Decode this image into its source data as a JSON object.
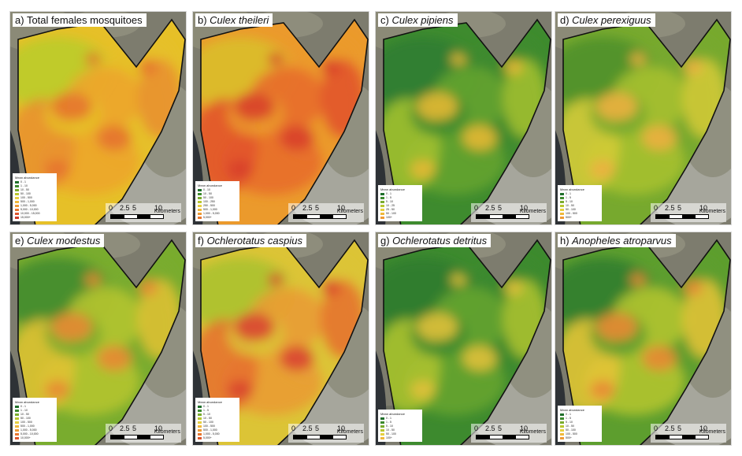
{
  "figure": {
    "panels": [
      {
        "letter": "a)",
        "title_plain": "Total females mosquitoes",
        "title_italic": "",
        "palette": [
          "#b9cc2a",
          "#e6c028",
          "#eda42a",
          "#e98f30"
        ],
        "hot": "#e5732e",
        "legend": {
          "title": "Mean abundance",
          "items": [
            "0 - 1",
            "1 - 10",
            "10 - 50",
            "50 - 100",
            "100 - 500",
            "500 - 1,000",
            "1,000 - 5,000",
            "5,000 - 10,000",
            "10,000 - 15,000",
            "15,000+"
          ]
        }
      },
      {
        "letter": "b)",
        "title_plain": "",
        "title_italic": "Culex theileri",
        "palette": [
          "#d9c02a",
          "#eb9a2c",
          "#e86b2a",
          "#e2522a"
        ],
        "hot": "#d8402a",
        "legend": {
          "title": "Mean abundance",
          "items": [
            "0 - 10",
            "10 - 50",
            "50 - 100",
            "100 - 250",
            "250 - 500",
            "500 - 1,000",
            "1,000 - 5,000",
            "5,000+"
          ]
        }
      },
      {
        "letter": "c)",
        "title_plain": "",
        "title_italic": "Culex pipiens",
        "palette": [
          "#2f7d32",
          "#3e8b2e",
          "#66a42e",
          "#a6c230"
        ],
        "hot": "#e4b834",
        "legend": {
          "title": "Mean abundance",
          "items": [
            "0 - 1",
            "1 - 5",
            "5 - 10",
            "10 - 25",
            "25 - 50",
            "50 - 100",
            "100+"
          ]
        }
      },
      {
        "letter": "d)",
        "title_plain": "",
        "title_italic": "Culex perexiguus",
        "palette": [
          "#4c8f2c",
          "#77a92e",
          "#a9c22e",
          "#d6cb38"
        ],
        "hot": "#ecb040",
        "legend": {
          "title": "Mean abundance",
          "items": [
            "0 - 1",
            "1 - 5",
            "5 - 10",
            "10 - 50",
            "50 - 100",
            "100 - 500",
            "500+"
          ]
        }
      },
      {
        "letter": "e)",
        "title_plain": "",
        "title_italic": "Culex modestus",
        "palette": [
          "#3f8a2e",
          "#79ac2e",
          "#b7c62e",
          "#e3c234"
        ],
        "hot": "#e88a34",
        "legend": {
          "title": "Mean abundance",
          "items": [
            "0 - 1",
            "1 - 10",
            "10 - 50",
            "50 - 100",
            "100 - 500",
            "500 - 1,000",
            "1,000 - 5,000",
            "5,000 - 10,000",
            "10,000+"
          ]
        }
      },
      {
        "letter": "f)",
        "title_plain": "",
        "title_italic": "Ochlerotatus caspius",
        "palette": [
          "#a8c22e",
          "#dcc436",
          "#ea9a34",
          "#e6702e"
        ],
        "hot": "#d94530",
        "legend": {
          "title": "Mean abundance",
          "items": [
            "0 - 1",
            "1 - 5",
            "5 - 10",
            "10 - 50",
            "50 - 100",
            "100 - 500",
            "500 - 1,000",
            "1,000 - 5,000",
            "5,000+"
          ]
        }
      },
      {
        "letter": "g)",
        "title_plain": "",
        "title_italic": "Ochlerotatus detritus",
        "palette": [
          "#2f7b30",
          "#3d8a2e",
          "#69a62e",
          "#b0c430"
        ],
        "hot": "#e0c038",
        "legend": {
          "title": "Mean abundance",
          "items": [
            "0 - 1",
            "1 - 5",
            "5 - 10",
            "10 - 50",
            "50 - 100",
            "100+"
          ]
        }
      },
      {
        "letter": "h)",
        "title_plain": "",
        "title_italic": "Anopheles atroparvus",
        "palette": [
          "#2f7c30",
          "#5d9e2e",
          "#b6c72e",
          "#e7c436"
        ],
        "hot": "#e88a34",
        "legend": {
          "title": "Mean abundance",
          "items": [
            "0 - 1",
            "1 - 5",
            "5 - 10",
            "10 - 50",
            "50 - 100",
            "100 - 500",
            "500+"
          ]
        }
      }
    ],
    "scale": {
      "ticks": [
        "0",
        "2.5",
        "5",
        "10"
      ],
      "unit": "Kilometers"
    }
  }
}
